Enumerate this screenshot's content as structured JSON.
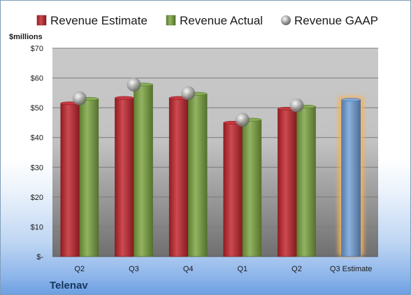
{
  "chart_data": {
    "type": "bar",
    "unit_label": "$millions",
    "company": "Telenav",
    "categories": [
      "Q2",
      "Q3",
      "Q4",
      "Q1",
      "Q2",
      "Q3 Estimate"
    ],
    "series": [
      {
        "name": "Revenue Estimate",
        "mark": "bar",
        "color": "#c0232b",
        "values": [
          51.5,
          53.3,
          53.3,
          45.0,
          49.7,
          null
        ]
      },
      {
        "name": "Revenue Actual",
        "mark": "bar",
        "color": "#7aa33f",
        "values": [
          53.0,
          57.8,
          54.7,
          46.0,
          50.4,
          null
        ]
      },
      {
        "name": "Revenue GAAP",
        "mark": "marker",
        "color": "#b8b8b8",
        "values": [
          53.2,
          57.8,
          54.9,
          46.0,
          50.8,
          null
        ]
      },
      {
        "name": "",
        "mark": "bar",
        "color": "#6f9fd8",
        "highlight": "#f7b25a",
        "values": [
          null,
          null,
          null,
          null,
          null,
          52.7
        ]
      }
    ],
    "ylim": [
      0,
      70
    ],
    "y_ticks": [
      {
        "value": 0,
        "label": "$-"
      },
      {
        "value": 10,
        "label": "$10"
      },
      {
        "value": 20,
        "label": "$20"
      },
      {
        "value": 30,
        "label": "$30"
      },
      {
        "value": 40,
        "label": "$40"
      },
      {
        "value": 50,
        "label": "$50"
      },
      {
        "value": 60,
        "label": "$60"
      },
      {
        "value": 70,
        "label": "$70"
      }
    ],
    "grid": true,
    "legend_position": "top"
  }
}
